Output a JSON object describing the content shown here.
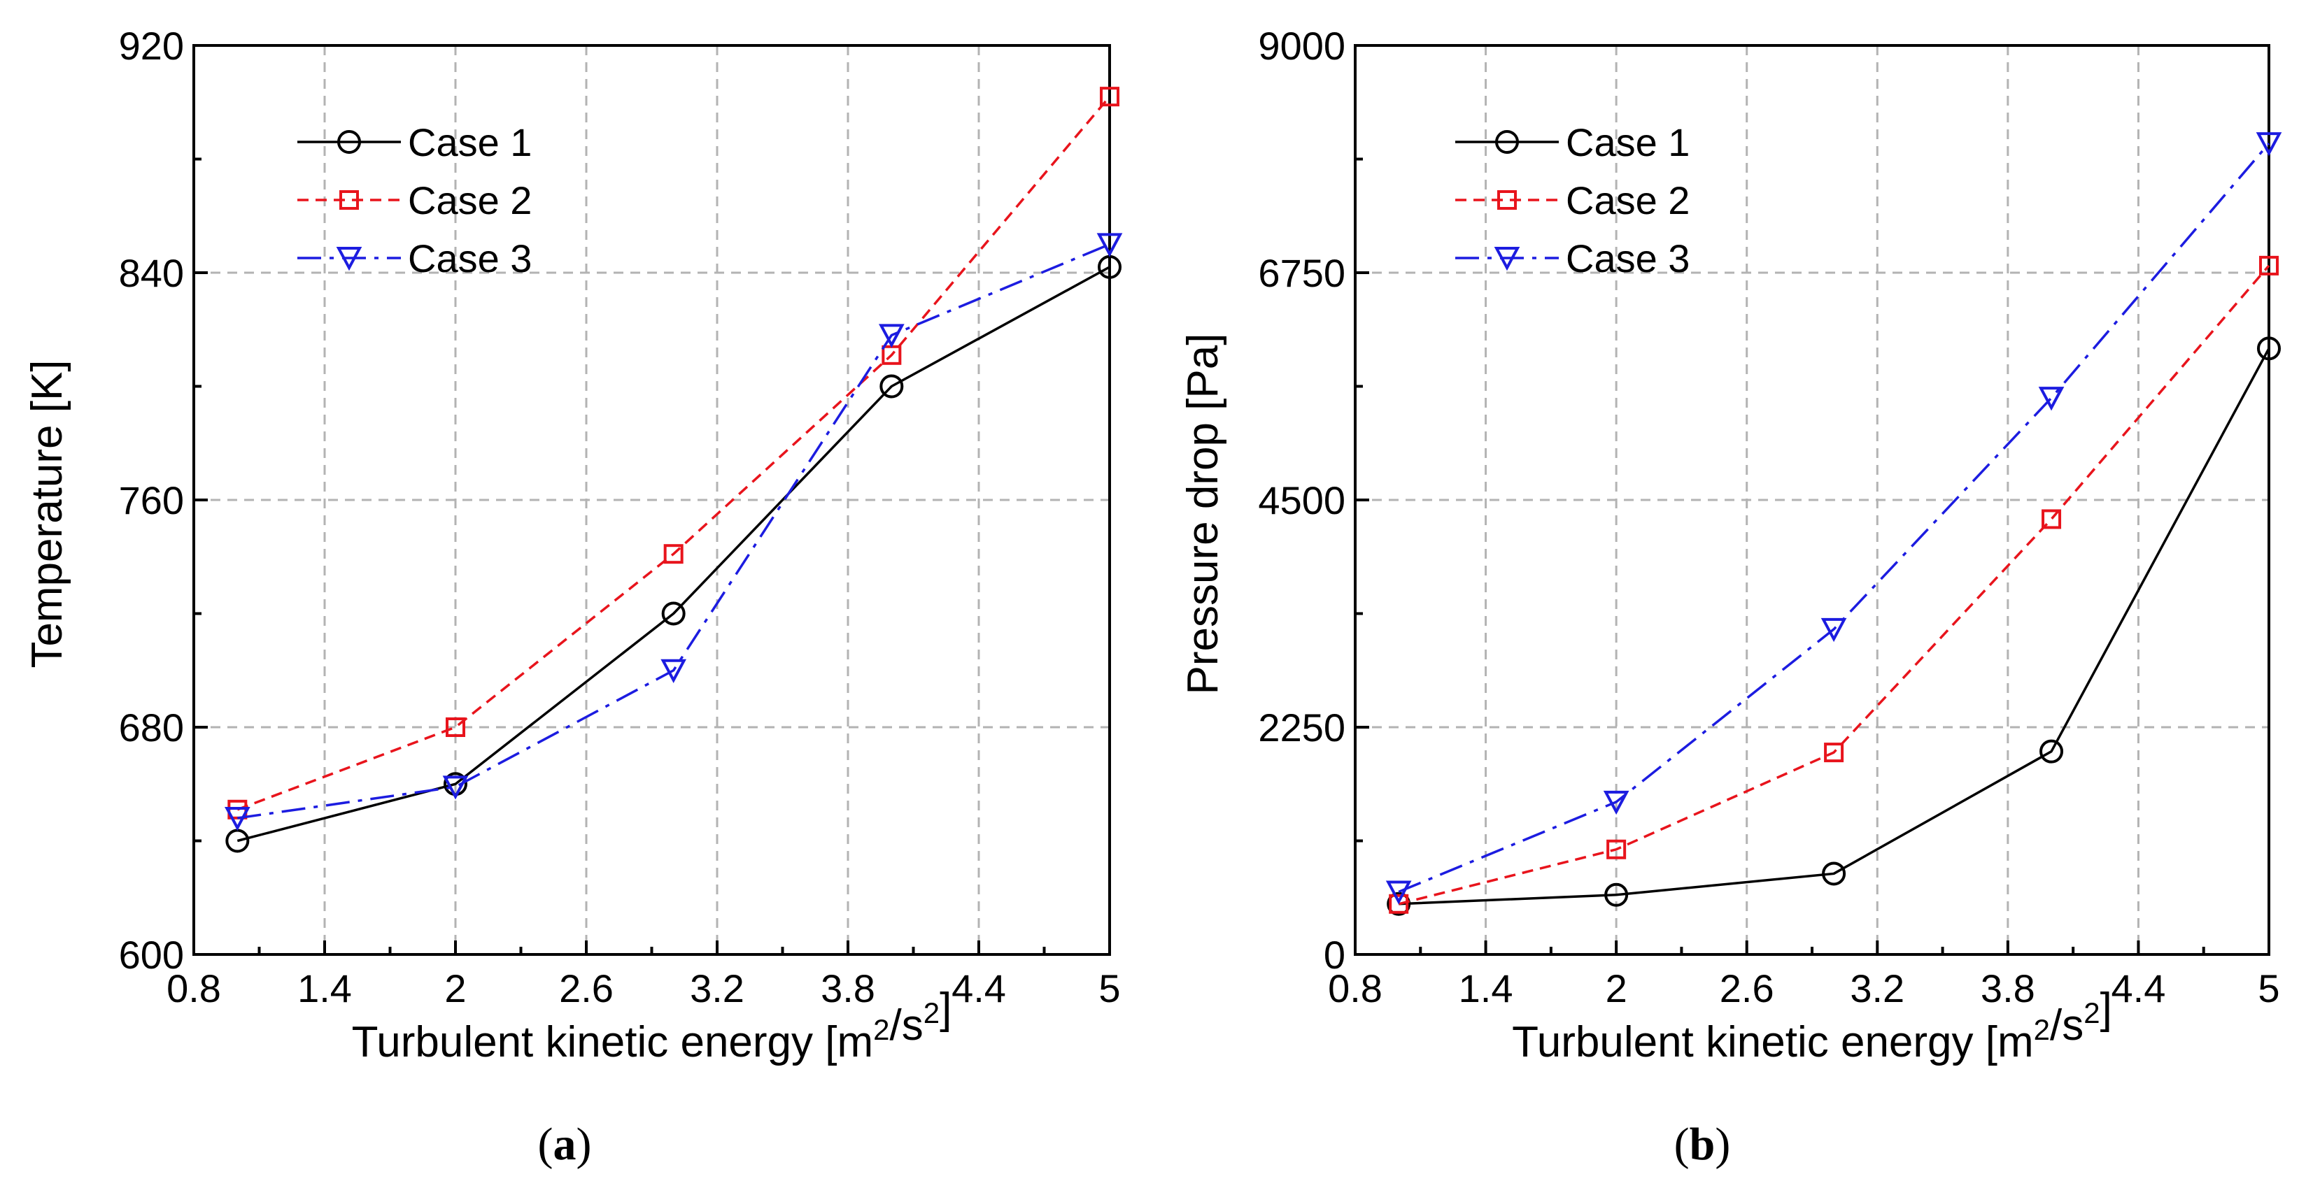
{
  "chart_data": [
    {
      "type": "line",
      "panel_label": "a",
      "xlabel": "Turbulent kinetic energy [m²/s²]",
      "xlabel_parts": {
        "prefix": "Turbulent kinetic energy [m",
        "sup1": "2",
        "middle": "/s",
        "sup2": "2",
        "suffix": "]"
      },
      "ylabel": "Temperature [K]",
      "xlim": [
        0.8,
        5
      ],
      "ylim": [
        600,
        920
      ],
      "xticks": [
        0.8,
        1.4,
        2,
        2.6,
        3.2,
        3.8,
        4.4,
        5
      ],
      "xtick_labels": [
        "0.8",
        "1.4",
        "2",
        "2.6",
        "3.2",
        "3.8",
        "4.4",
        "5"
      ],
      "yticks": [
        600,
        680,
        760,
        840,
        920
      ],
      "ytick_labels": [
        "600",
        "680",
        "760",
        "840",
        "920"
      ],
      "grid": true,
      "legend_position": "top-left",
      "x": [
        1,
        2,
        3,
        4,
        5
      ],
      "series": [
        {
          "name": "Case 1",
          "color": "#000000",
          "dash": "solid",
          "marker": "circle",
          "values": [
            640,
            660,
            720,
            800,
            842
          ]
        },
        {
          "name": "Case 2",
          "color": "#e8141c",
          "dash": "dashed",
          "marker": "square",
          "values": [
            651,
            680,
            741,
            811,
            902
          ]
        },
        {
          "name": "Case 3",
          "color": "#1c1ce0",
          "dash": "dash-dot",
          "marker": "triangle-down",
          "values": [
            648,
            659,
            700,
            818,
            850
          ]
        }
      ]
    },
    {
      "type": "line",
      "panel_label": "b",
      "xlabel": "Turbulent kinetic energy [m²/s²]",
      "xlabel_parts": {
        "prefix": "Turbulent kinetic energy [m",
        "sup1": "2",
        "middle": "/s",
        "sup2": "2",
        "suffix": "]"
      },
      "ylabel": "Pressure drop [Pa]",
      "xlim": [
        0.8,
        5
      ],
      "ylim": [
        0,
        9000
      ],
      "xticks": [
        0.8,
        1.4,
        2,
        2.6,
        3.2,
        3.8,
        4.4,
        5
      ],
      "xtick_labels": [
        "0.8",
        "1.4",
        "2",
        "2.6",
        "3.2",
        "3.8",
        "4.4",
        "5"
      ],
      "yticks": [
        0,
        2250,
        4500,
        6750,
        9000
      ],
      "ytick_labels": [
        "0",
        "2250",
        "4500",
        "6750",
        "9000"
      ],
      "grid": true,
      "legend_position": "top-left",
      "x": [
        1,
        2,
        3,
        4,
        5
      ],
      "series": [
        {
          "name": "Case 1",
          "color": "#000000",
          "dash": "solid",
          "marker": "circle",
          "values": [
            500,
            590,
            800,
            2010,
            6000
          ]
        },
        {
          "name": "Case 2",
          "color": "#e8141c",
          "dash": "dashed",
          "marker": "square",
          "values": [
            500,
            1040,
            2000,
            4310,
            6820
          ]
        },
        {
          "name": "Case 3",
          "color": "#1c1ce0",
          "dash": "dash-dot",
          "marker": "triangle-down",
          "values": [
            620,
            1510,
            3220,
            5510,
            8030
          ]
        }
      ]
    }
  ]
}
